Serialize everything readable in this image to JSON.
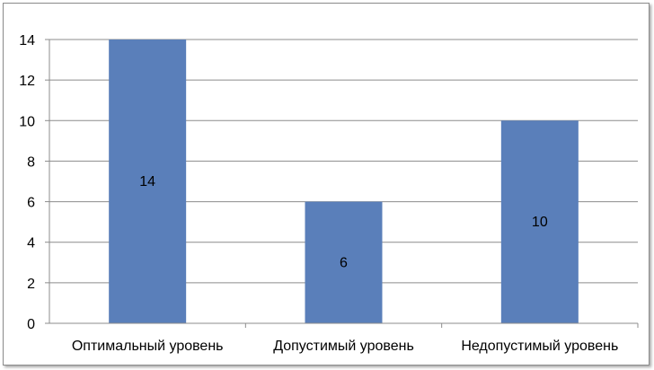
{
  "chart_data": {
    "type": "bar",
    "categories": [
      "Оптимальный уровень",
      "Допустимый уровень",
      "Недопустимый уровень"
    ],
    "values": [
      14,
      6,
      10
    ],
    "data_labels": [
      "14",
      "6",
      "10"
    ],
    "title": "",
    "xlabel": "",
    "ylabel": "",
    "ylim": [
      0,
      14
    ],
    "yticks": [
      0,
      2,
      4,
      6,
      8,
      10,
      12,
      14
    ],
    "grid": true,
    "legend": "none",
    "colors": {
      "bar": "#5a7fba",
      "grid": "#8c8c8c",
      "axis": "#8c8c8c"
    }
  }
}
